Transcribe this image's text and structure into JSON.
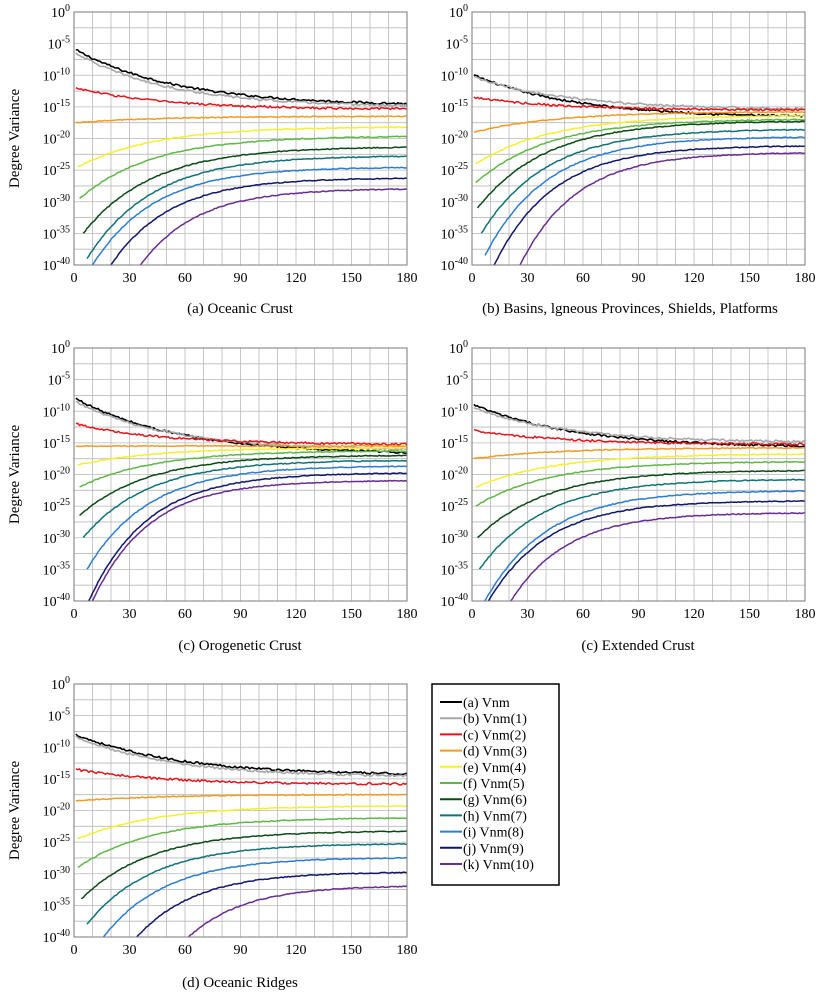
{
  "chart_data": [
    {
      "type": "line",
      "title": "(a) Oceanic Crust",
      "xlabel": "",
      "ylabel": "Degree Variance",
      "xlim": [
        0,
        180
      ],
      "ylim_exponent": [
        -40,
        0
      ],
      "xticks": [
        "0",
        "30",
        "60",
        "90",
        "120",
        "150",
        "180"
      ],
      "ytick_base": "10",
      "yticks_exponent": [
        "0",
        "-5",
        "-10",
        "-15",
        "-20",
        "-25",
        "-30",
        "-35",
        "-40"
      ],
      "grid": true,
      "series_log10_endpoints": [
        {
          "name": "(a) Vnm",
          "start_n": 1,
          "start_log": -6,
          "end_log": -14.5
        },
        {
          "name": "(b) Vnm(1)",
          "start_n": 1,
          "start_log": -6.5,
          "end_log": -14.8
        },
        {
          "name": "(c) Vnm(2)",
          "start_n": 1,
          "start_log": -12,
          "end_log": -15.3
        },
        {
          "name": "(d) Vnm(3)",
          "start_n": 1,
          "start_log": -17.5,
          "end_log": -16.5
        },
        {
          "name": "(e) Vnm(4)",
          "start_n": 2,
          "start_log": -24.5,
          "end_log": -18.2
        },
        {
          "name": "(f) Vnm(5)",
          "start_n": 3,
          "start_log": -29.5,
          "end_log": -19.7
        },
        {
          "name": "(g) Vnm(6)",
          "start_n": 5,
          "start_log": -35,
          "end_log": -21.4
        },
        {
          "name": "(h) Vnm(7)",
          "start_n": 7,
          "start_log": -39,
          "end_log": -22.8
        },
        {
          "name": "(i) Vnm(8)",
          "start_n": 10,
          "start_log": -40,
          "end_log": -24.6
        },
        {
          "name": "(j) Vnm(9)",
          "start_n": 20,
          "start_log": -40,
          "end_log": -26.3
        },
        {
          "name": "(k) Vnm(10)",
          "start_n": 36,
          "start_log": -40,
          "end_log": -28
        }
      ]
    },
    {
      "type": "line",
      "title": "(b) Basins, lgneous Provinces, Shields, Platforms",
      "xlabel": "",
      "ylabel": "",
      "xlim": [
        0,
        180
      ],
      "ylim_exponent": [
        -40,
        0
      ],
      "xticks": [
        "0",
        "30",
        "60",
        "90",
        "120",
        "150",
        "180"
      ],
      "ytick_base": "10",
      "yticks_exponent": [
        "0",
        "-5",
        "-10",
        "-15",
        "-20",
        "-25",
        "-30",
        "-35",
        "-40"
      ],
      "grid": true,
      "series_log10_endpoints": [
        {
          "name": "(a) Vnm",
          "start_n": 1,
          "start_log": -10,
          "end_log": -16.5
        },
        {
          "name": "(b) Vnm(1)",
          "start_n": 1,
          "start_log": -10.3,
          "end_log": -15.3
        },
        {
          "name": "(c) Vnm(2)",
          "start_n": 1,
          "start_log": -13.5,
          "end_log": -15.5
        },
        {
          "name": "(d) Vnm(3)",
          "start_n": 1,
          "start_log": -19,
          "end_log": -15.8
        },
        {
          "name": "(e) Vnm(4)",
          "start_n": 2,
          "start_log": -24,
          "end_log": -16.4
        },
        {
          "name": "(f) Vnm(5)",
          "start_n": 2,
          "start_log": -27,
          "end_log": -17
        },
        {
          "name": "(g) Vnm(6)",
          "start_n": 3,
          "start_log": -31,
          "end_log": -17.3
        },
        {
          "name": "(h) Vnm(7)",
          "start_n": 5,
          "start_log": -35,
          "end_log": -18.6
        },
        {
          "name": "(i) Vnm(8)",
          "start_n": 7,
          "start_log": -38.5,
          "end_log": -19.8
        },
        {
          "name": "(j) Vnm(9)",
          "start_n": 12,
          "start_log": -40,
          "end_log": -21.2
        },
        {
          "name": "(k) Vnm(10)",
          "start_n": 26,
          "start_log": -40,
          "end_log": -22.3
        }
      ]
    },
    {
      "type": "line",
      "title": "(c) Orogenetic Crust",
      "xlabel": "",
      "ylabel": "Degree Variance",
      "xlim": [
        0,
        180
      ],
      "ylim_exponent": [
        -40,
        0
      ],
      "xticks": [
        "0",
        "30",
        "60",
        "90",
        "120",
        "150",
        "180"
      ],
      "ytick_base": "10",
      "yticks_exponent": [
        "0",
        "-5",
        "-10",
        "-15",
        "-20",
        "-25",
        "-30",
        "-35",
        "-40"
      ],
      "grid": true,
      "series_log10_endpoints": [
        {
          "name": "(a) Vnm",
          "start_n": 1,
          "start_log": -8,
          "end_log": -16.5
        },
        {
          "name": "(b) Vnm(1)",
          "start_n": 1,
          "start_log": -8.5,
          "end_log": -16
        },
        {
          "name": "(c) Vnm(2)",
          "start_n": 1,
          "start_log": -12,
          "end_log": -15.2
        },
        {
          "name": "(d) Vnm(3)",
          "start_n": 1,
          "start_log": -15.5,
          "end_log": -15.5
        },
        {
          "name": "(e) Vnm(4)",
          "start_n": 2,
          "start_log": -18.5,
          "end_log": -15.8
        },
        {
          "name": "(f) Vnm(5)",
          "start_n": 3,
          "start_log": -22,
          "end_log": -16.3
        },
        {
          "name": "(g) Vnm(6)",
          "start_n": 3,
          "start_log": -26.5,
          "end_log": -17
        },
        {
          "name": "(h) Vnm(7)",
          "start_n": 5,
          "start_log": -30,
          "end_log": -17.8
        },
        {
          "name": "(i) Vnm(8)",
          "start_n": 7,
          "start_log": -35,
          "end_log": -18.7
        },
        {
          "name": "(j) Vnm(9)",
          "start_n": 8,
          "start_log": -40,
          "end_log": -19.8
        },
        {
          "name": "(k) Vnm(10)",
          "start_n": 10,
          "start_log": -40,
          "end_log": -21
        }
      ]
    },
    {
      "type": "line",
      "title": "(c) Extended Crust",
      "xlabel": "",
      "ylabel": "",
      "xlim": [
        0,
        180
      ],
      "ylim_exponent": [
        -40,
        0
      ],
      "xticks": [
        "0",
        "30",
        "60",
        "90",
        "120",
        "150",
        "180"
      ],
      "ytick_base": "10",
      "yticks_exponent": [
        "0",
        "-5",
        "-10",
        "-15",
        "-20",
        "-25",
        "-30",
        "-35",
        "-40"
      ],
      "grid": true,
      "series_log10_endpoints": [
        {
          "name": "(a) Vnm",
          "start_n": 1,
          "start_log": -9,
          "end_log": -15.5
        },
        {
          "name": "(b) Vnm(1)",
          "start_n": 1,
          "start_log": -9.5,
          "end_log": -14.8
        },
        {
          "name": "(c) Vnm(2)",
          "start_n": 1,
          "start_log": -13,
          "end_log": -15.2
        },
        {
          "name": "(d) Vnm(3)",
          "start_n": 1,
          "start_log": -17.5,
          "end_log": -15.8
        },
        {
          "name": "(e) Vnm(4)",
          "start_n": 2,
          "start_log": -22,
          "end_log": -16.8
        },
        {
          "name": "(f) Vnm(5)",
          "start_n": 2,
          "start_log": -25,
          "end_log": -18
        },
        {
          "name": "(g) Vnm(6)",
          "start_n": 3,
          "start_log": -30,
          "end_log": -19.4
        },
        {
          "name": "(h) Vnm(7)",
          "start_n": 4,
          "start_log": -35,
          "end_log": -20.8
        },
        {
          "name": "(i) Vnm(8)",
          "start_n": 7,
          "start_log": -40,
          "end_log": -22.6
        },
        {
          "name": "(j) Vnm(9)",
          "start_n": 9,
          "start_log": -40,
          "end_log": -24.2
        },
        {
          "name": "(k) Vnm(10)",
          "start_n": 21,
          "start_log": -40,
          "end_log": -26.1
        }
      ]
    },
    {
      "type": "line",
      "title": "(d) Oceanic Ridges",
      "xlabel": "",
      "ylabel": "Degree Variance",
      "xlim": [
        0,
        180
      ],
      "ylim_exponent": [
        -40,
        0
      ],
      "xticks": [
        "0",
        "30",
        "60",
        "90",
        "120",
        "150",
        "180"
      ],
      "ytick_base": "10",
      "yticks_exponent": [
        "0",
        "-5",
        "-10",
        "-15",
        "-20",
        "-25",
        "-30",
        "-35",
        "-40"
      ],
      "grid": true,
      "series_log10_endpoints": [
        {
          "name": "(a) Vnm",
          "start_n": 1,
          "start_log": -8,
          "end_log": -14.2
        },
        {
          "name": "(b) Vnm(1)",
          "start_n": 1,
          "start_log": -8.3,
          "end_log": -14.5
        },
        {
          "name": "(c) Vnm(2)",
          "start_n": 1,
          "start_log": -13.5,
          "end_log": -15.8
        },
        {
          "name": "(d) Vnm(3)",
          "start_n": 1,
          "start_log": -18.5,
          "end_log": -17.5
        },
        {
          "name": "(e) Vnm(4)",
          "start_n": 2,
          "start_log": -24.5,
          "end_log": -19.3
        },
        {
          "name": "(f) Vnm(5)",
          "start_n": 2,
          "start_log": -29,
          "end_log": -21.2
        },
        {
          "name": "(g) Vnm(6)",
          "start_n": 4,
          "start_log": -34,
          "end_log": -23.3
        },
        {
          "name": "(h) Vnm(7)",
          "start_n": 7,
          "start_log": -38,
          "end_log": -25.3
        },
        {
          "name": "(i) Vnm(8)",
          "start_n": 16,
          "start_log": -40,
          "end_log": -27.5
        },
        {
          "name": "(j) Vnm(9)",
          "start_n": 34,
          "start_log": -40,
          "end_log": -29.8
        },
        {
          "name": "(k) Vnm(10)",
          "start_n": 62,
          "start_log": -40,
          "end_log": -32
        }
      ]
    }
  ],
  "legend": {
    "items": [
      {
        "label": "(a) Vnm",
        "color": "#000000"
      },
      {
        "label": "(b) Vnm(1)",
        "color": "#a8a8a8"
      },
      {
        "label": "(c) Vnm(2)",
        "color": "#e4141b"
      },
      {
        "label": "(d) Vnm(3)",
        "color": "#f39a21"
      },
      {
        "label": "(e) Vnm(4)",
        "color": "#f7ef2c"
      },
      {
        "label": "(f) Vnm(5)",
        "color": "#5fb846"
      },
      {
        "label": "(g) Vnm(6)",
        "color": "#0b4a17"
      },
      {
        "label": "(h) Vnm(7)",
        "color": "#0f7278"
      },
      {
        "label": "(i) Vnm(8)",
        "color": "#2b7dd0"
      },
      {
        "label": "(j) Vnm(9)",
        "color": "#12166b"
      },
      {
        "label": "(k) Vnm(10)",
        "color": "#6a2c91"
      }
    ]
  },
  "colors": {
    "grid": "#b9b9b9",
    "axis": "#7a7a7a",
    "text": "#000000"
  }
}
